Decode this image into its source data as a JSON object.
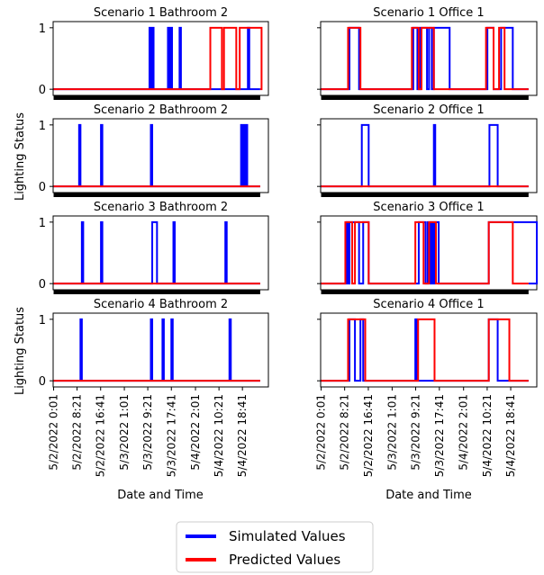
{
  "figure": {
    "ylabel": "Lighting Status",
    "xlabel": "Date and Time",
    "legend": [
      {
        "name": "Simulated Values",
        "color": "#0000ff"
      },
      {
        "name": "Predicted Values",
        "color": "#ff0000"
      }
    ]
  },
  "chart_data": [
    {
      "type": "line",
      "title": "Scenario 1  Bathroom 2",
      "x_unit": "days since 5/2/2022 0:00",
      "xlim": [
        0,
        3.15
      ],
      "ylim": [
        -0.1,
        1.1
      ],
      "yticks": [
        0,
        1
      ],
      "series": [
        {
          "name": "Simulated Values",
          "color": "#0000ff",
          "on_intervals": [
            [
              1.41,
              1.43
            ],
            [
              1.45,
              1.47
            ],
            [
              1.68,
              1.7
            ],
            [
              1.72,
              1.74
            ],
            [
              1.85,
              1.87
            ],
            [
              2.85,
              2.87
            ]
          ]
        },
        {
          "name": "Predicted Values",
          "color": "#ff0000",
          "on_intervals": [
            [
              2.3,
              2.47
            ],
            [
              2.5,
              2.68
            ],
            [
              2.73,
              3.05
            ]
          ]
        }
      ]
    },
    {
      "type": "line",
      "title": "Scenario 1  Office 1",
      "x_unit": "days since 5/2/2022 0:00",
      "xlim": [
        0,
        3.15
      ],
      "ylim": [
        -0.1,
        1.1
      ],
      "yticks": [
        0,
        1
      ],
      "series": [
        {
          "name": "Simulated Values",
          "color": "#0000ff",
          "on_intervals": [
            [
              0.42,
              0.56
            ],
            [
              1.35,
              1.41
            ],
            [
              1.45,
              1.55
            ],
            [
              1.58,
              1.62
            ],
            [
              1.65,
              1.88
            ],
            [
              2.43,
              2.52
            ],
            [
              2.63,
              2.8
            ]
          ]
        },
        {
          "name": "Predicted Values",
          "color": "#ff0000",
          "on_intervals": [
            [
              0.4,
              0.58
            ],
            [
              1.33,
              1.43
            ],
            [
              1.47,
              1.65
            ],
            [
              2.41,
              2.52
            ],
            [
              2.6,
              2.68
            ]
          ]
        }
      ]
    },
    {
      "type": "line",
      "title": "Scenario 2  Bathroom 2",
      "x_unit": "days since 5/2/2022 0:00",
      "xlim": [
        0,
        3.15
      ],
      "ylim": [
        -0.1,
        1.1
      ],
      "yticks": [
        0,
        1
      ],
      "series": [
        {
          "name": "Simulated Values",
          "color": "#0000ff",
          "on_intervals": [
            [
              0.38,
              0.4
            ],
            [
              0.7,
              0.72
            ],
            [
              1.43,
              1.45
            ],
            [
              2.75,
              2.77
            ],
            [
              2.79,
              2.81
            ],
            [
              2.82,
              2.84
            ]
          ]
        },
        {
          "name": "Predicted Values",
          "color": "#ff0000",
          "on_intervals": []
        }
      ]
    },
    {
      "type": "line",
      "title": "Scenario 2  Office 1",
      "x_unit": "days since 5/2/2022 0:00",
      "xlim": [
        0,
        3.15
      ],
      "ylim": [
        -0.1,
        1.1
      ],
      "yticks": [
        0,
        1
      ],
      "series": [
        {
          "name": "Simulated Values",
          "color": "#0000ff",
          "on_intervals": [
            [
              0.6,
              0.7
            ],
            [
              1.65,
              1.67
            ],
            [
              2.46,
              2.58
            ]
          ]
        },
        {
          "name": "Predicted Values",
          "color": "#ff0000",
          "on_intervals": []
        }
      ]
    },
    {
      "type": "line",
      "title": "Scenario 3  Bathroom 2",
      "x_unit": "days since 5/2/2022 0:00",
      "xlim": [
        0,
        3.15
      ],
      "ylim": [
        -0.1,
        1.1
      ],
      "yticks": [
        0,
        1
      ],
      "series": [
        {
          "name": "Simulated Values",
          "color": "#0000ff",
          "on_intervals": [
            [
              0.42,
              0.44
            ],
            [
              0.7,
              0.72
            ],
            [
              1.45,
              1.52
            ],
            [
              1.76,
              1.78
            ],
            [
              2.52,
              2.54
            ]
          ]
        },
        {
          "name": "Predicted Values",
          "color": "#ff0000",
          "on_intervals": []
        }
      ]
    },
    {
      "type": "line",
      "title": "Scenario 3  Office 1",
      "x_unit": "days since 5/2/2022 0:00",
      "xlim": [
        0,
        3.15
      ],
      "ylim": [
        -0.1,
        1.1
      ],
      "yticks": [
        0,
        1
      ],
      "series": [
        {
          "name": "Simulated Values",
          "color": "#0000ff",
          "on_intervals": [
            [
              0.38,
              0.4
            ],
            [
              0.42,
              0.56
            ],
            [
              0.62,
              0.7
            ],
            [
              1.43,
              1.53
            ],
            [
              1.56,
              1.6
            ],
            [
              1.62,
              1.64
            ],
            [
              1.66,
              1.72
            ],
            [
              2.45,
              3.15
            ]
          ]
        },
        {
          "name": "Predicted Values",
          "color": "#ff0000",
          "on_intervals": [
            [
              0.36,
              0.46
            ],
            [
              0.5,
              0.7
            ],
            [
              1.38,
              1.5
            ],
            [
              1.58,
              1.68
            ],
            [
              2.45,
              2.8
            ]
          ]
        }
      ]
    },
    {
      "type": "line",
      "title": "Scenario 4  Bathroom 2",
      "x_unit": "days since 5/2/2022 0:00",
      "xlim": [
        0,
        3.15
      ],
      "ylim": [
        -0.1,
        1.1
      ],
      "yticks": [
        0,
        1
      ],
      "series": [
        {
          "name": "Simulated Values",
          "color": "#0000ff",
          "on_intervals": [
            [
              0.4,
              0.42
            ],
            [
              1.43,
              1.45
            ],
            [
              1.6,
              1.62
            ],
            [
              1.73,
              1.75
            ],
            [
              2.58,
              2.6
            ]
          ]
        },
        {
          "name": "Predicted Values",
          "color": "#ff0000",
          "on_intervals": []
        }
      ]
    },
    {
      "type": "line",
      "title": "Scenario 4  Office 1",
      "x_unit": "days since 5/2/2022 0:00",
      "xlim": [
        0,
        3.15
      ],
      "ylim": [
        -0.1,
        1.1
      ],
      "yticks": [
        0,
        1
      ],
      "series": [
        {
          "name": "Simulated Values",
          "color": "#0000ff",
          "on_intervals": [
            [
              0.42,
              0.5
            ],
            [
              0.58,
              0.62
            ],
            [
              1.38,
              1.4
            ],
            [
              2.45,
              2.58
            ]
          ]
        },
        {
          "name": "Predicted Values",
          "color": "#ff0000",
          "on_intervals": [
            [
              0.4,
              0.65
            ],
            [
              1.42,
              1.66
            ],
            [
              2.45,
              2.75
            ]
          ]
        }
      ]
    }
  ],
  "xticks": {
    "positions": [
      0.007,
      0.35,
      0.695,
      1.042,
      1.385,
      1.73,
      2.083,
      2.427,
      2.77
    ],
    "labels": [
      "5/2/2022 0:01",
      "5/2/2022 8:21",
      "5/2/2022 16:41",
      "5/3/2022 1:01",
      "5/3/2022 9:21",
      "5/3/2022 17:41",
      "5/4/2022 2:01",
      "5/4/2022 10:21",
      "5/4/2022 18:41"
    ]
  }
}
